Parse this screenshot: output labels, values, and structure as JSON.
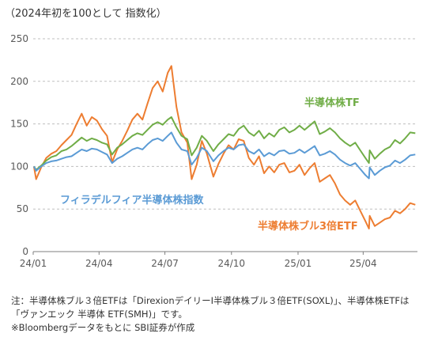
{
  "chart_data": {
    "type": "line",
    "caption": "（2024年初を100として 指数化）",
    "yticks": [
      0,
      50,
      100,
      150,
      200,
      250
    ],
    "ylim": [
      0,
      250
    ],
    "xticks": [
      "24/01",
      "24/04",
      "24/07",
      "24/10",
      "25/01",
      "25/04"
    ],
    "x_range": [
      "2024-01-01",
      "2025-06-15"
    ],
    "grid": true,
    "series": [
      {
        "name": "フィラデルフィア半導体株指数",
        "color": "#5b9bd5",
        "points": [
          [
            "2024-01-02",
            100
          ],
          [
            "2024-01-05",
            95
          ],
          [
            "2024-01-12",
            100
          ],
          [
            "2024-01-19",
            104
          ],
          [
            "2024-01-26",
            106
          ],
          [
            "2024-02-02",
            107
          ],
          [
            "2024-02-09",
            109
          ],
          [
            "2024-02-16",
            111
          ],
          [
            "2024-02-23",
            112
          ],
          [
            "2024-03-01",
            116
          ],
          [
            "2024-03-08",
            120
          ],
          [
            "2024-03-15",
            118
          ],
          [
            "2024-03-22",
            121
          ],
          [
            "2024-03-29",
            120
          ],
          [
            "2024-04-05",
            117
          ],
          [
            "2024-04-12",
            114
          ],
          [
            "2024-04-19",
            104
          ],
          [
            "2024-04-26",
            109
          ],
          [
            "2024-05-03",
            112
          ],
          [
            "2024-05-10",
            116
          ],
          [
            "2024-05-17",
            120
          ],
          [
            "2024-05-24",
            122
          ],
          [
            "2024-05-31",
            120
          ],
          [
            "2024-06-07",
            126
          ],
          [
            "2024-06-14",
            131
          ],
          [
            "2024-06-21",
            133
          ],
          [
            "2024-06-28",
            130
          ],
          [
            "2024-07-05",
            136
          ],
          [
            "2024-07-10",
            140
          ],
          [
            "2024-07-17",
            128
          ],
          [
            "2024-07-24",
            120
          ],
          [
            "2024-08-01",
            118
          ],
          [
            "2024-08-07",
            102
          ],
          [
            "2024-08-14",
            110
          ],
          [
            "2024-08-21",
            122
          ],
          [
            "2024-08-28",
            118
          ],
          [
            "2024-09-06",
            106
          ],
          [
            "2024-09-13",
            113
          ],
          [
            "2024-09-20",
            118
          ],
          [
            "2024-09-27",
            122
          ],
          [
            "2024-10-04",
            120
          ],
          [
            "2024-10-11",
            125
          ],
          [
            "2024-10-18",
            126
          ],
          [
            "2024-10-25",
            118
          ],
          [
            "2024-11-01",
            115
          ],
          [
            "2024-11-08",
            120
          ],
          [
            "2024-11-15",
            112
          ],
          [
            "2024-11-22",
            116
          ],
          [
            "2024-11-29",
            113
          ],
          [
            "2024-12-06",
            118
          ],
          [
            "2024-12-13",
            119
          ],
          [
            "2024-12-20",
            115
          ],
          [
            "2024-12-27",
            116
          ],
          [
            "2025-01-03",
            120
          ],
          [
            "2025-01-10",
            116
          ],
          [
            "2025-01-17",
            120
          ],
          [
            "2025-01-24",
            124
          ],
          [
            "2025-01-31",
            113
          ],
          [
            "2025-02-07",
            115
          ],
          [
            "2025-02-14",
            118
          ],
          [
            "2025-02-21",
            114
          ],
          [
            "2025-02-28",
            108
          ],
          [
            "2025-03-07",
            104
          ],
          [
            "2025-03-14",
            101
          ],
          [
            "2025-03-21",
            104
          ],
          [
            "2025-03-28",
            97
          ],
          [
            "2025-04-04",
            90
          ],
          [
            "2025-04-09",
            86
          ],
          [
            "2025-04-10",
            99
          ],
          [
            "2025-04-17",
            90
          ],
          [
            "2025-04-24",
            95
          ],
          [
            "2025-05-01",
            99
          ],
          [
            "2025-05-08",
            101
          ],
          [
            "2025-05-15",
            107
          ],
          [
            "2025-05-22",
            104
          ],
          [
            "2025-05-29",
            108
          ],
          [
            "2025-06-05",
            113
          ],
          [
            "2025-06-12",
            114
          ]
        ]
      },
      {
        "name": "半導体株TF",
        "color": "#70ad47",
        "points": [
          [
            "2024-01-02",
            100
          ],
          [
            "2024-01-05",
            96
          ],
          [
            "2024-01-12",
            101
          ],
          [
            "2024-01-19",
            107
          ],
          [
            "2024-01-26",
            111
          ],
          [
            "2024-02-02",
            113
          ],
          [
            "2024-02-09",
            118
          ],
          [
            "2024-02-16",
            120
          ],
          [
            "2024-02-23",
            124
          ],
          [
            "2024-03-01",
            129
          ],
          [
            "2024-03-08",
            134
          ],
          [
            "2024-03-15",
            130
          ],
          [
            "2024-03-22",
            133
          ],
          [
            "2024-03-29",
            131
          ],
          [
            "2024-04-05",
            128
          ],
          [
            "2024-04-12",
            126
          ],
          [
            "2024-04-19",
            114
          ],
          [
            "2024-04-26",
            122
          ],
          [
            "2024-05-03",
            126
          ],
          [
            "2024-05-10",
            131
          ],
          [
            "2024-05-17",
            136
          ],
          [
            "2024-05-24",
            139
          ],
          [
            "2024-05-31",
            137
          ],
          [
            "2024-06-07",
            143
          ],
          [
            "2024-06-14",
            149
          ],
          [
            "2024-06-21",
            152
          ],
          [
            "2024-06-28",
            149
          ],
          [
            "2024-07-05",
            155
          ],
          [
            "2024-07-10",
            158
          ],
          [
            "2024-07-17",
            146
          ],
          [
            "2024-07-24",
            136
          ],
          [
            "2024-08-01",
            132
          ],
          [
            "2024-08-07",
            113
          ],
          [
            "2024-08-14",
            122
          ],
          [
            "2024-08-21",
            136
          ],
          [
            "2024-08-28",
            130
          ],
          [
            "2024-09-06",
            118
          ],
          [
            "2024-09-13",
            126
          ],
          [
            "2024-09-20",
            132
          ],
          [
            "2024-09-27",
            138
          ],
          [
            "2024-10-04",
            136
          ],
          [
            "2024-10-11",
            144
          ],
          [
            "2024-10-18",
            148
          ],
          [
            "2024-10-25",
            140
          ],
          [
            "2024-11-01",
            136
          ],
          [
            "2024-11-08",
            142
          ],
          [
            "2024-11-15",
            133
          ],
          [
            "2024-11-22",
            139
          ],
          [
            "2024-11-29",
            135
          ],
          [
            "2024-12-06",
            143
          ],
          [
            "2024-12-13",
            146
          ],
          [
            "2024-12-20",
            140
          ],
          [
            "2024-12-27",
            143
          ],
          [
            "2025-01-03",
            148
          ],
          [
            "2025-01-10",
            143
          ],
          [
            "2025-01-17",
            148
          ],
          [
            "2025-01-24",
            153
          ],
          [
            "2025-01-31",
            138
          ],
          [
            "2025-02-07",
            141
          ],
          [
            "2025-02-14",
            145
          ],
          [
            "2025-02-21",
            140
          ],
          [
            "2025-02-28",
            133
          ],
          [
            "2025-03-07",
            128
          ],
          [
            "2025-03-14",
            124
          ],
          [
            "2025-03-21",
            128
          ],
          [
            "2025-03-28",
            119
          ],
          [
            "2025-04-04",
            110
          ],
          [
            "2025-04-09",
            104
          ],
          [
            "2025-04-10",
            119
          ],
          [
            "2025-04-17",
            109
          ],
          [
            "2025-04-24",
            115
          ],
          [
            "2025-05-01",
            120
          ],
          [
            "2025-05-08",
            123
          ],
          [
            "2025-05-15",
            131
          ],
          [
            "2025-05-22",
            127
          ],
          [
            "2025-05-29",
            133
          ],
          [
            "2025-06-05",
            140
          ],
          [
            "2025-06-12",
            139
          ]
        ]
      },
      {
        "name": "半導体株ブル3倍ETF",
        "color": "#ed7d31",
        "points": [
          [
            "2024-01-02",
            100
          ],
          [
            "2024-01-05",
            85
          ],
          [
            "2024-01-12",
            99
          ],
          [
            "2024-01-19",
            110
          ],
          [
            "2024-01-26",
            115
          ],
          [
            "2024-02-02",
            118
          ],
          [
            "2024-02-09",
            125
          ],
          [
            "2024-02-16",
            131
          ],
          [
            "2024-02-23",
            137
          ],
          [
            "2024-03-01",
            150
          ],
          [
            "2024-03-08",
            162
          ],
          [
            "2024-03-15",
            148
          ],
          [
            "2024-03-22",
            158
          ],
          [
            "2024-03-29",
            154
          ],
          [
            "2024-04-05",
            144
          ],
          [
            "2024-04-12",
            136
          ],
          [
            "2024-04-19",
            105
          ],
          [
            "2024-04-26",
            120
          ],
          [
            "2024-05-03",
            130
          ],
          [
            "2024-05-10",
            142
          ],
          [
            "2024-05-17",
            155
          ],
          [
            "2024-05-24",
            162
          ],
          [
            "2024-05-31",
            155
          ],
          [
            "2024-06-07",
            174
          ],
          [
            "2024-06-14",
            192
          ],
          [
            "2024-06-21",
            200
          ],
          [
            "2024-06-28",
            188
          ],
          [
            "2024-07-05",
            210
          ],
          [
            "2024-07-10",
            218
          ],
          [
            "2024-07-17",
            170
          ],
          [
            "2024-07-24",
            140
          ],
          [
            "2024-08-01",
            128
          ],
          [
            "2024-08-07",
            85
          ],
          [
            "2024-08-14",
            102
          ],
          [
            "2024-08-21",
            130
          ],
          [
            "2024-08-28",
            115
          ],
          [
            "2024-09-06",
            88
          ],
          [
            "2024-09-13",
            103
          ],
          [
            "2024-09-20",
            115
          ],
          [
            "2024-09-27",
            125
          ],
          [
            "2024-10-04",
            120
          ],
          [
            "2024-10-11",
            132
          ],
          [
            "2024-10-18",
            130
          ],
          [
            "2024-10-25",
            110
          ],
          [
            "2024-11-01",
            102
          ],
          [
            "2024-11-08",
            112
          ],
          [
            "2024-11-15",
            92
          ],
          [
            "2024-11-22",
            100
          ],
          [
            "2024-11-29",
            93
          ],
          [
            "2024-12-06",
            102
          ],
          [
            "2024-12-13",
            104
          ],
          [
            "2024-12-20",
            93
          ],
          [
            "2024-12-27",
            95
          ],
          [
            "2025-01-03",
            102
          ],
          [
            "2025-01-10",
            90
          ],
          [
            "2025-01-17",
            98
          ],
          [
            "2025-01-24",
            104
          ],
          [
            "2025-01-31",
            82
          ],
          [
            "2025-02-07",
            86
          ],
          [
            "2025-02-14",
            90
          ],
          [
            "2025-02-21",
            80
          ],
          [
            "2025-02-28",
            67
          ],
          [
            "2025-03-07",
            60
          ],
          [
            "2025-03-14",
            55
          ],
          [
            "2025-03-21",
            60
          ],
          [
            "2025-03-28",
            48
          ],
          [
            "2025-04-04",
            36
          ],
          [
            "2025-04-09",
            27
          ],
          [
            "2025-04-10",
            42
          ],
          [
            "2025-04-17",
            30
          ],
          [
            "2025-04-24",
            34
          ],
          [
            "2025-05-01",
            38
          ],
          [
            "2025-05-08",
            40
          ],
          [
            "2025-05-15",
            48
          ],
          [
            "2025-05-22",
            45
          ],
          [
            "2025-05-29",
            50
          ],
          [
            "2025-06-05",
            57
          ],
          [
            "2025-06-12",
            55
          ]
        ]
      }
    ],
    "labels": {
      "index": "フィラデルフィア半導体株指数",
      "tf": "半導体株TF",
      "bull": "半導体株ブル3倍ETF"
    }
  },
  "notes": [
    "注：半導体株ブル３倍ETFは「DirexionデイリーI半導体株ブル３倍ETF(SOXL)」、半導体株ETFは",
    "「ヴァンエック 半導体 ETF(SMH)」です。",
    "※Bloombergデータをもとに SBI証券が作成"
  ]
}
